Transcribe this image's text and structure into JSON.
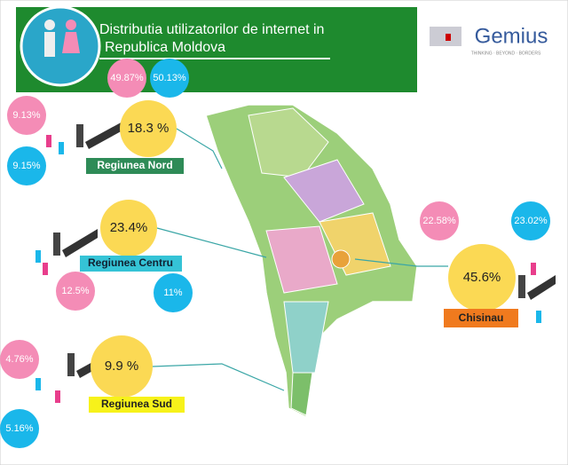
{
  "header": {
    "title_line1": "Distributia utilizatorilor de internet in",
    "title_line2": "Republica Moldova",
    "female": "49.87%",
    "male": "50.13%"
  },
  "logo": {
    "name": "Gemius",
    "tagline": "THINKING · BEYOND · BORDERS"
  },
  "regions": [
    {
      "name": "Regiunea Nord",
      "total": "18.3 %",
      "female": "9.13%",
      "male": "9.15%"
    },
    {
      "name": "Regiunea Centru",
      "total": "23.4%",
      "female": "12.5%",
      "male": "11%"
    },
    {
      "name": "Regiunea Sud",
      "total": "9.9 %",
      "female": "4.76%",
      "male": "5.16%"
    },
    {
      "name": "Chisinau",
      "total": "45.6%",
      "female": "22.58%",
      "male": "23.02%"
    }
  ]
}
